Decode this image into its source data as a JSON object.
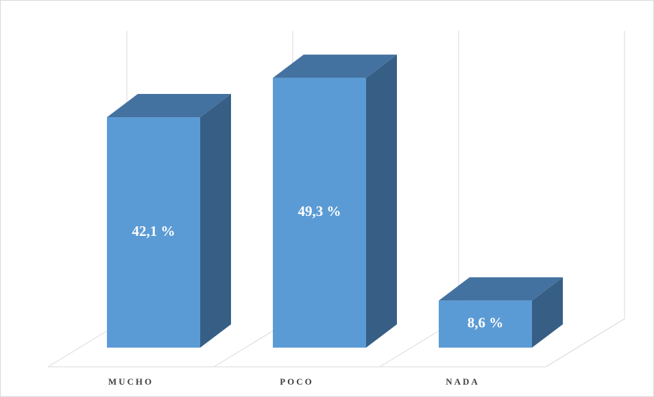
{
  "chart_data": {
    "type": "bar3d",
    "categories": [
      "MUCHO",
      "POCO",
      "NADA"
    ],
    "values": [
      42.1,
      49.3,
      8.6
    ],
    "value_labels": [
      "42,1 %",
      "49,3 %",
      "8,6 %"
    ],
    "color": "#5b9bd5"
  }
}
